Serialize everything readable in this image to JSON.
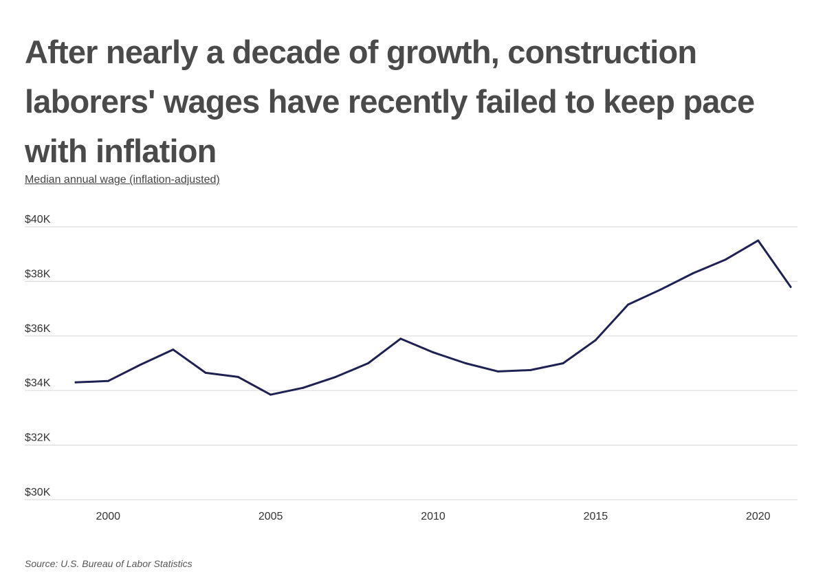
{
  "title": "After nearly a decade of growth, construction laborers' wages have recently failed to keep pace with inflation",
  "source": "Source:  U.S. Bureau of Labor Statistics",
  "colors": {
    "line": "#1e2152",
    "grid": "#dcdcdc",
    "title": "#4a4a4a"
  },
  "chart_data": {
    "type": "line",
    "title": "After nearly a decade of growth, construction laborers' wages have recently failed to keep pace with inflation",
    "ylabel": "Median annual wage (inflation-adjusted)",
    "xlabel": "",
    "xlim": [
      1999,
      2021
    ],
    "ylim": [
      30000,
      40000
    ],
    "x_ticks": [
      2000,
      2005,
      2010,
      2015,
      2020
    ],
    "x_tick_labels": [
      "2000",
      "2005",
      "2010",
      "2015",
      "2020"
    ],
    "y_ticks": [
      30000,
      32000,
      34000,
      36000,
      38000,
      40000
    ],
    "y_tick_labels": [
      "$30K",
      "$32K",
      "$34K",
      "$36K",
      "$38K",
      "$40K"
    ],
    "grid": "horizontal",
    "legend": "none",
    "series": [
      {
        "x": [
          1999,
          2000,
          2001,
          2002,
          2003,
          2004,
          2005,
          2006,
          2007,
          2008,
          2009,
          2010,
          2011,
          2012,
          2013,
          2014,
          2015,
          2016,
          2017,
          2018,
          2019,
          2020,
          2021
        ],
        "values": [
          34300,
          34350,
          34950,
          35500,
          34650,
          34500,
          33850,
          34100,
          34500,
          35000,
          35900,
          35400,
          35000,
          34700,
          34750,
          35000,
          35850,
          37150,
          37700,
          38300,
          38800,
          39500,
          37800
        ]
      }
    ]
  }
}
